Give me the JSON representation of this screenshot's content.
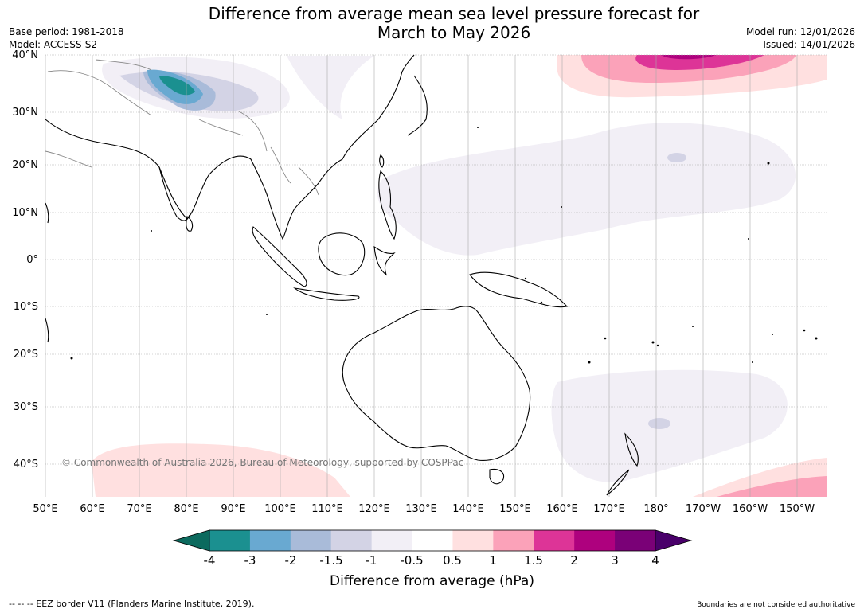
{
  "header": {
    "title_line1": "Difference from average mean sea level pressure forecast for",
    "title_line2": "March to May 2026",
    "base_period": "Base period: 1981-2018",
    "model": "Model: ACCESS-S2",
    "model_run": "Model run: 12/01/2026",
    "issued": "Issued: 14/01/2026"
  },
  "map": {
    "lat_labels": [
      "40°N",
      "30°N",
      "20°N",
      "10°N",
      "0°",
      "10°S",
      "20°S",
      "30°S",
      "40°S"
    ],
    "lon_labels": [
      "50°E",
      "60°E",
      "70°E",
      "80°E",
      "90°E",
      "100°E",
      "110°E",
      "120°E",
      "130°E",
      "140°E",
      "150°E",
      "160°E",
      "170°E",
      "180°",
      "170°W",
      "160°W",
      "150°W"
    ],
    "copyright": "© Commonwealth of Australia 2026, Bureau of Meteorology, supported by COSPPac"
  },
  "colorbar": {
    "ticks": [
      "-4",
      "-3",
      "-2",
      "-1.5",
      "-1",
      "-0.5",
      "0.5",
      "1",
      "1.5",
      "2",
      "3",
      "4"
    ],
    "colors": [
      "#1b9090",
      "#69a9d1",
      "#a9bbd9",
      "#d3d3e5",
      "#f2eff6",
      "#ffffff",
      "#ffe0e0",
      "#fba2b9",
      "#dd3497",
      "#ae017e",
      "#7a0177"
    ],
    "under_color": "#0c6a5e",
    "over_color": "#49006a",
    "label": "Difference from average (hPa)"
  },
  "footer": {
    "eez_legend": "--  --  -- EEZ border V11 (Flanders Marine Institute, 2019).",
    "disclaimer": "Boundaries are not considered authoritative"
  }
}
